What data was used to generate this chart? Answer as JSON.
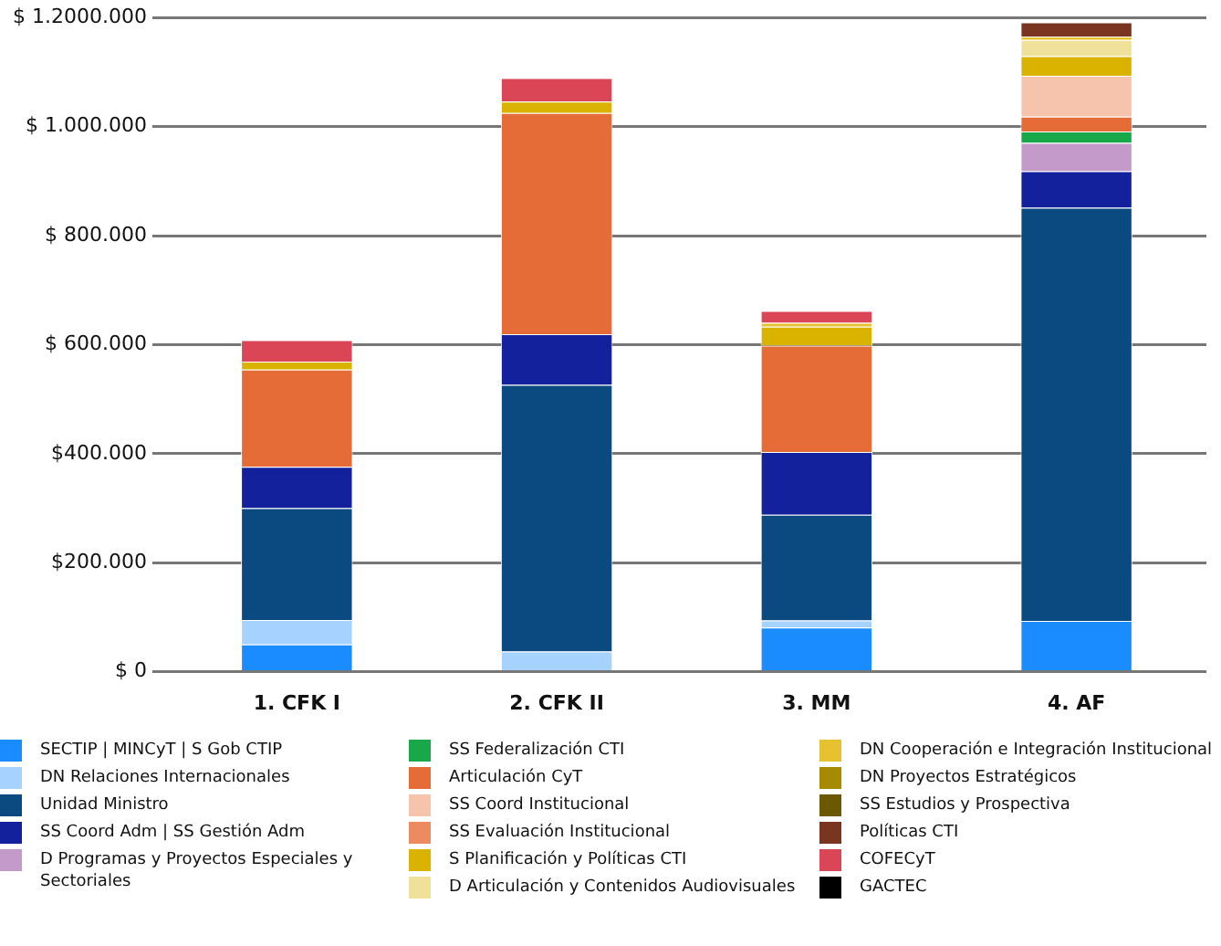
{
  "chart_data": {
    "type": "bar",
    "stacked": true,
    "categories": [
      "1. CFK I",
      "2. CFK II",
      "3. MM",
      "4. AF"
    ],
    "ylim": [
      0,
      1200000
    ],
    "yticks": [
      {
        "value": 0,
        "label": "$ 0"
      },
      {
        "value": 200000,
        "label": "$200.000"
      },
      {
        "value": 400000,
        "label": "$400.000"
      },
      {
        "value": 600000,
        "label": "$ 600.000"
      },
      {
        "value": 800000,
        "label": "$ 800.000"
      },
      {
        "value": 1000000,
        "label": "$ 1.000.000"
      },
      {
        "value": 1200000,
        "label": "$ 1.2000.000"
      }
    ],
    "grid": "y",
    "legend": "bottom",
    "series": [
      {
        "name": "SECTIP | MINCyT | S Gob CTIP",
        "color": "#1a8cff",
        "values": [
          50000,
          null,
          81000,
          93000
        ]
      },
      {
        "name": "DN Relaciones Internacionales",
        "color": "#a6d2ff",
        "values": [
          45000,
          37000,
          13000,
          null
        ]
      },
      {
        "name": "Unidad Ministro",
        "color": "#0b4a80",
        "values": [
          205000,
          489000,
          194000,
          758000
        ]
      },
      {
        "name": "SS Coord Adm | SS Gestión Adm",
        "color": "#14219c",
        "values": [
          76000,
          93000,
          115000,
          67000
        ]
      },
      {
        "name": "D Programas y Proyectos Especiales y Sectoriales",
        "color": "#c39ac9",
        "values": [
          null,
          null,
          null,
          52000
        ]
      },
      {
        "name": "SS Federalización CTI",
        "color": "#18a84a",
        "values": [
          null,
          null,
          null,
          21000
        ]
      },
      {
        "name": "Articulación CyT",
        "color": "#e66c37",
        "values": [
          178000,
          406000,
          195000,
          27000
        ]
      },
      {
        "name": "SS Coord Institucional",
        "color": "#f6c3ad",
        "values": [
          null,
          null,
          null,
          75000
        ]
      },
      {
        "name": "SS Evaluación Institucional",
        "color": "#ec8b5f",
        "values": [
          null,
          null,
          null,
          null
        ]
      },
      {
        "name": "S Planificación y Políticas CTI",
        "color": "#dab300",
        "values": [
          15000,
          21000,
          35000,
          36000
        ]
      },
      {
        "name": "D Articulación y Contenidos Audiovisuales",
        "color": "#f0e19a",
        "values": [
          null,
          null,
          null,
          30000
        ]
      },
      {
        "name": "DN Cooperación e Integración Institucional",
        "color": "#e6c230",
        "values": [
          null,
          null,
          7000,
          6000
        ]
      },
      {
        "name": "DN Proyectos Estratégicos",
        "color": "#a68a00",
        "values": [
          null,
          null,
          null,
          null
        ]
      },
      {
        "name": "SS Estudios y Prospectiva",
        "color": "#6b5800",
        "values": [
          null,
          null,
          null,
          null
        ]
      },
      {
        "name": "Políticas CTI",
        "color": "#7a3520",
        "values": [
          null,
          null,
          null,
          26000
        ]
      },
      {
        "name": "COFECyT",
        "color": "#db4656",
        "values": [
          39000,
          43000,
          22000,
          null
        ]
      },
      {
        "name": "GACTEC",
        "color": "#000000",
        "values": [
          null,
          null,
          null,
          null
        ]
      }
    ]
  }
}
